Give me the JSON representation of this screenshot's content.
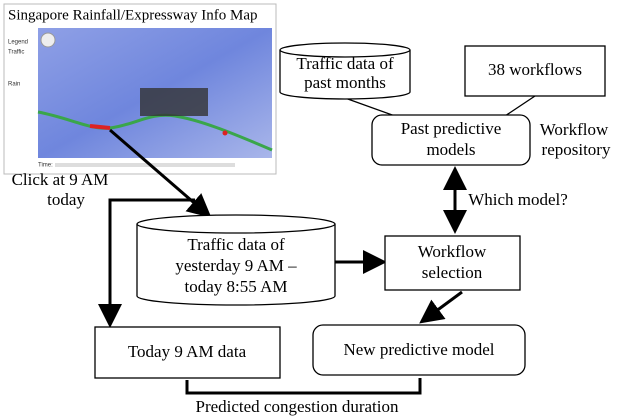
{
  "map": {
    "title": "Singapore Rainfall/Expressway Info Map",
    "legend": "Legend",
    "traffic": "Traffic",
    "rain": "Rain",
    "time": "Time:"
  },
  "click_note": {
    "lines": [
      "Click at 9 AM",
      "today"
    ]
  },
  "nodes": [
    {
      "label": [
        "Traffic data of",
        "past months"
      ]
    },
    {
      "label": [
        "38 workflows"
      ]
    },
    {
      "label": [
        "Past predictive",
        "models"
      ]
    },
    {
      "label": [
        "Traffic data of",
        "yesterday 9 AM –",
        "today 8:55 AM"
      ]
    },
    {
      "label": [
        "Workflow",
        "selection"
      ]
    },
    {
      "label": [
        "Today 9 AM data"
      ]
    },
    {
      "label": [
        "New predictive model"
      ]
    }
  ],
  "repository_label": [
    "Workflow",
    "repository"
  ],
  "edge_label": "Which model?",
  "output_label": "Predicted congestion duration"
}
